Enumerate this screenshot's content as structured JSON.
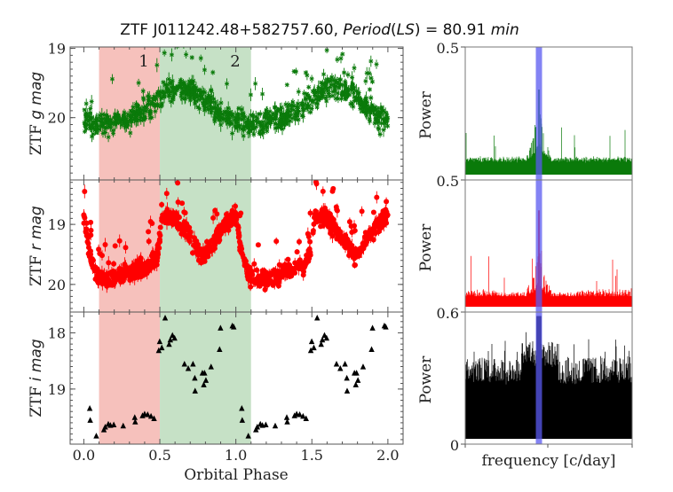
{
  "title": {
    "object": "ZTF J011242.48+582757.60, ",
    "period_word": "Period",
    "paren_open": "(",
    "ls": "LS",
    "paren_close": ")",
    "equals_value": " = 80.91 ",
    "unit": "min"
  },
  "colors": {
    "g_band": "#0a7a0a",
    "r_band": "#ff0000",
    "i_band": "#000000",
    "region1_fill": "#f4b6b0",
    "region2_fill": "#bcdcbc",
    "peak_highlight": "#5a5af0"
  },
  "chart_data": [
    {
      "type": "scatter",
      "panel": "light-curve-g",
      "ylabel_prefix": "ZTF ",
      "ylabel_italic": "g mag",
      "y_inverted": true,
      "ylim": [
        20.9,
        18.98
      ],
      "yticks": [
        "19",
        "20"
      ],
      "ytick_values": [
        19,
        20
      ],
      "marker": "asterisk-with-errorbars",
      "color": "#0a7a0a",
      "mean_curve": {
        "phase": [
          0.0,
          0.1,
          0.2,
          0.3,
          0.4,
          0.5,
          0.6,
          0.7,
          0.8,
          0.9,
          1.0
        ],
        "mag": [
          20.05,
          20.1,
          20.05,
          20.0,
          19.9,
          19.72,
          19.55,
          19.6,
          19.75,
          19.95,
          20.05
        ]
      },
      "scatter_mag": 0.3
    },
    {
      "type": "scatter",
      "panel": "light-curve-r",
      "ylabel_prefix": "ZTF ",
      "ylabel_italic": "r mag",
      "y_inverted": true,
      "ylim": [
        20.46,
        18.26
      ],
      "yticks": [
        "19",
        "20"
      ],
      "ytick_values": [
        19,
        20
      ],
      "marker": "circle-with-errorbars",
      "color": "#ff0000",
      "mean_curve": {
        "phase": [
          0.0,
          0.05,
          0.1,
          0.2,
          0.3,
          0.4,
          0.48,
          0.52,
          0.6,
          0.7,
          0.78,
          0.85,
          0.95,
          1.0
        ],
        "mag": [
          18.85,
          19.6,
          19.9,
          19.9,
          19.82,
          19.72,
          19.58,
          18.85,
          18.9,
          19.2,
          19.55,
          19.3,
          18.95,
          18.85
        ]
      },
      "scatter_mag": 0.25
    },
    {
      "type": "scatter",
      "panel": "light-curve-i",
      "ylabel_prefix": "ZTF ",
      "ylabel_italic": "i mag",
      "y_inverted": true,
      "ylim": [
        19.98,
        17.63
      ],
      "yticks": [
        "18",
        "19"
      ],
      "ytick_values": [
        18,
        19
      ],
      "marker": "triangle",
      "color": "#000000",
      "phase": [
        0.039,
        0.042,
        0.082,
        0.132,
        0.141,
        0.161,
        0.175,
        0.197,
        0.259,
        0.335,
        0.338,
        0.386,
        0.4,
        0.42,
        0.442,
        0.462,
        0.493,
        0.499,
        0.513,
        0.535,
        0.561,
        0.569,
        0.583,
        0.597,
        0.662,
        0.687,
        0.718,
        0.73,
        0.732,
        0.78,
        0.794,
        0.789,
        0.803,
        0.837,
        0.893,
        0.899,
        0.977,
        0.986
      ],
      "mag": [
        19.35,
        19.56,
        19.84,
        19.73,
        19.68,
        19.63,
        19.65,
        19.64,
        19.66,
        19.51,
        19.59,
        19.48,
        19.45,
        19.46,
        19.49,
        19.53,
        18.32,
        18.16,
        18.27,
        17.74,
        18.21,
        18.13,
        18.05,
        18.1,
        18.56,
        18.64,
        18.56,
        18.81,
        19.04,
        18.72,
        18.72,
        18.93,
        18.85,
        18.61,
        18.3,
        17.92,
        17.88,
        17.9
      ]
    },
    {
      "type": "line",
      "panel": "periodogram-g",
      "ylabel": "Power",
      "yticks_top": "0.5",
      "yticks_bottom": "0.5",
      "color": "#0a7a0a"
    },
    {
      "type": "line",
      "panel": "periodogram-r",
      "ylabel": "Power",
      "yticks_bottom": "0.6",
      "color": "#ff0000"
    },
    {
      "type": "line",
      "panel": "periodogram-i",
      "ylabel": "Power",
      "yticks_bottom": "0",
      "color": "#000000"
    }
  ],
  "x_axis": {
    "label": "Orbital Phase",
    "xlim": [
      -0.09,
      2.1
    ],
    "ticks": [
      "0.0",
      "0.5",
      "1.0",
      "1.5",
      "2.0"
    ],
    "tick_values": [
      0,
      0.5,
      1.0,
      1.5,
      2.0
    ]
  },
  "regions": [
    {
      "label": "1",
      "from": 0.1,
      "to": 0.5
    },
    {
      "label": "2",
      "from": 0.5,
      "to": 1.1
    }
  ],
  "periodogram_x_axis": {
    "label": "frequency [c/day]"
  }
}
